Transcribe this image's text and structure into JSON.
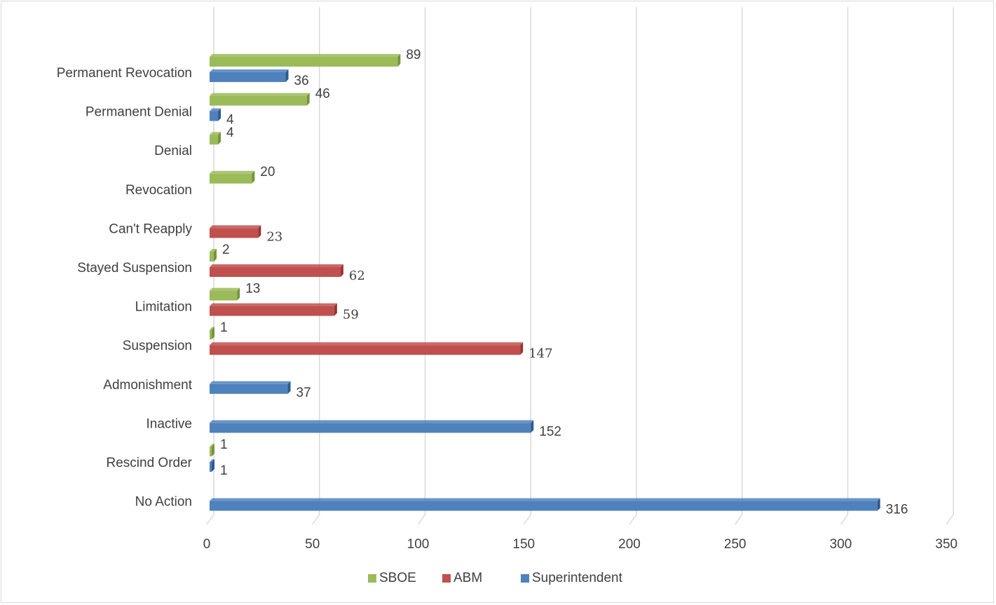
{
  "chart_data": {
    "type": "bar",
    "orientation": "horizontal",
    "title": "",
    "xlabel": "",
    "ylabel": "",
    "categories": [
      "Permanent Revocation",
      "Permanent Denial",
      "Denial",
      "Revocation",
      "Can't Reapply",
      "Stayed Suspension",
      "Limitation",
      "Suspension",
      "Admonishment",
      "Inactive",
      "Rescind Order",
      "No Action"
    ],
    "series": [
      {
        "name": "SBOE",
        "color": "#9bbb59",
        "side_color": "#77933c",
        "values": [
          89,
          46,
          4,
          20,
          null,
          2,
          13,
          1,
          null,
          null,
          1,
          null
        ]
      },
      {
        "name": "ABM",
        "color": "#c0504d",
        "side_color": "#943634",
        "values": [
          null,
          null,
          null,
          null,
          23,
          62,
          59,
          147,
          null,
          null,
          null,
          null
        ]
      },
      {
        "name": "Superintendent",
        "color": "#4f81bd",
        "side_color": "#2f5a8c",
        "values": [
          36,
          4,
          null,
          null,
          null,
          null,
          null,
          null,
          37,
          152,
          1,
          316
        ]
      }
    ],
    "xlim": [
      0,
      350
    ],
    "xticks": [
      0,
      50,
      100,
      150,
      200,
      250,
      300,
      350
    ],
    "grid": true,
    "legend_position": "bottom"
  }
}
